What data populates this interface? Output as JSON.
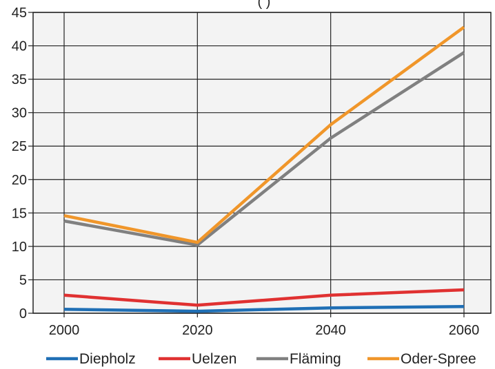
{
  "chart_data": {
    "type": "line",
    "title_fragment": "(         )",
    "x": [
      2000,
      2020,
      2040,
      2060
    ],
    "xlim": [
      2000,
      2060
    ],
    "ylim": [
      0,
      45
    ],
    "yticks": [
      0,
      5,
      10,
      15,
      20,
      25,
      30,
      35,
      40,
      45
    ],
    "grid": true,
    "legend_position": "bottom",
    "series": [
      {
        "name": "Diepholz",
        "color": "#1f6fb5",
        "values": [
          0.6,
          0.3,
          0.8,
          1.0
        ]
      },
      {
        "name": "Uelzen",
        "color": "#e03131",
        "values": [
          2.7,
          1.2,
          2.7,
          3.5
        ]
      },
      {
        "name": "Fläming",
        "color": "#808080",
        "values": [
          13.8,
          10.2,
          26.2,
          39.0
        ]
      },
      {
        "name": "Oder-Spree",
        "color": "#f0962a",
        "values": [
          14.6,
          10.6,
          28.2,
          42.8
        ]
      }
    ]
  }
}
